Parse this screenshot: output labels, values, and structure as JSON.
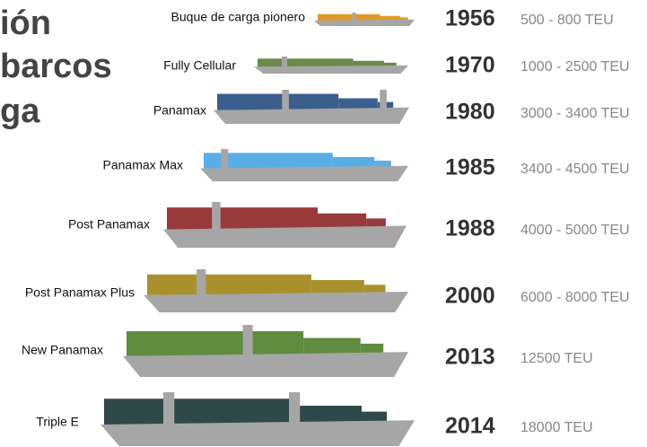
{
  "header": {
    "title_lines": [
      "ión",
      "barcos",
      "ga"
    ]
  },
  "ships": [
    {
      "label": "Buque de carga pionero",
      "year": "1956",
      "capacity": "500 - 800 TEU",
      "color": "#e09a2c"
    },
    {
      "label": "Fully Cellular",
      "year": "1970",
      "capacity": "1000 - 2500 TEU",
      "color": "#6b8a4a"
    },
    {
      "label": "Panamax",
      "year": "1980",
      "capacity": "3000 - 3400 TEU",
      "color": "#3b5e8e"
    },
    {
      "label": "Panamax Max",
      "year": "1985",
      "capacity": "3400 - 4500 TEU",
      "color": "#5aaee6"
    },
    {
      "label": "Post Panamax",
      "year": "1988",
      "capacity": "4000 - 5000 TEU",
      "color": "#983a3c"
    },
    {
      "label": "Post Panamax Plus",
      "year": "2000",
      "capacity": "6000 - 8000 TEU",
      "color": "#a8912c"
    },
    {
      "label": "New Panamax",
      "year": "2013",
      "capacity": "12500 TEU",
      "color": "#5f8c3e"
    },
    {
      "label": "Triple E",
      "year": "2014",
      "capacity": "18000 TEU",
      "color": "#2f4848"
    }
  ]
}
